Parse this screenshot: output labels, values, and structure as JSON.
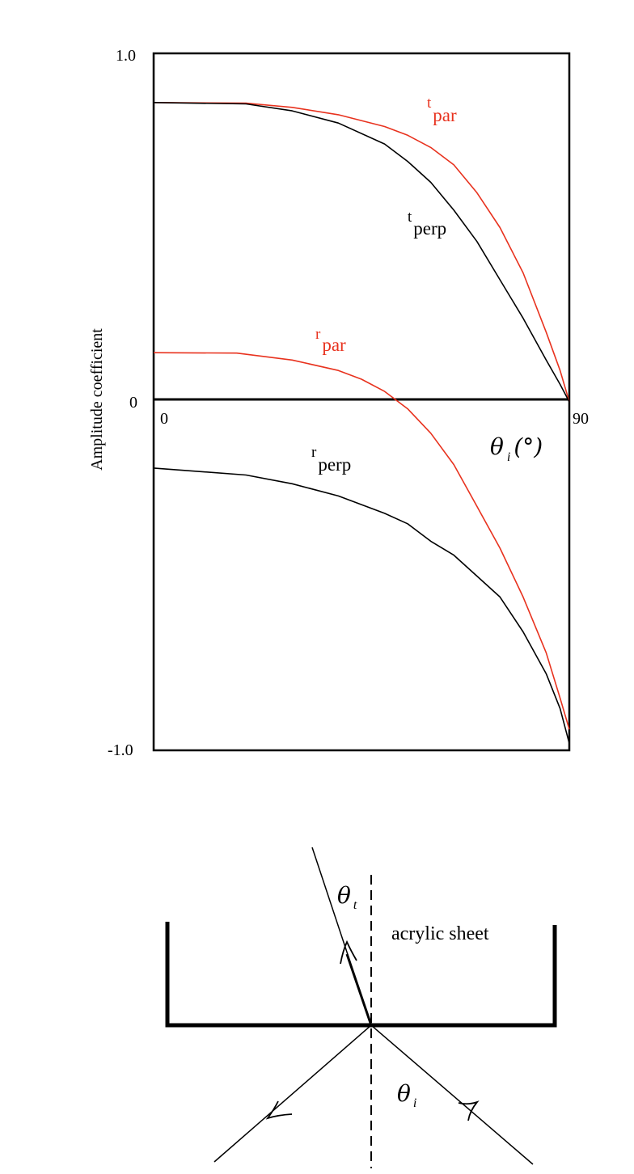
{
  "chart_data": {
    "type": "line",
    "title": "",
    "ylabel": "Amplitude coefficient",
    "xlim": [
      0,
      90
    ],
    "ylim": [
      -1.0,
      1.0
    ],
    "grid": false,
    "y_tick_labels": [
      "1.0",
      "0",
      "-1.0"
    ],
    "x_tick_labels": [
      "0",
      "90"
    ],
    "xlabel_parts": {
      "symbol": "θ",
      "subscript": "i",
      "unit": "(°)"
    },
    "series": [
      {
        "label": {
          "main": "t",
          "sub": "par"
        },
        "color": "#e8321e",
        "x": [
          0,
          20,
          30,
          40,
          50,
          55,
          60,
          65,
          70,
          75,
          80,
          85,
          88,
          90
        ],
        "y": [
          0.859,
          0.857,
          0.845,
          0.824,
          0.79,
          0.765,
          0.73,
          0.68,
          0.6,
          0.5,
          0.37,
          0.2,
          0.09,
          0.0
        ]
      },
      {
        "label": {
          "main": "t",
          "sub": "perp"
        },
        "color": "#000000",
        "x": [
          0,
          20,
          30,
          40,
          50,
          55,
          60,
          65,
          70,
          75,
          80,
          85,
          88,
          90
        ],
        "y": [
          0.859,
          0.855,
          0.835,
          0.8,
          0.74,
          0.69,
          0.63,
          0.55,
          0.46,
          0.35,
          0.24,
          0.12,
          0.05,
          0.0
        ]
      },
      {
        "label": {
          "main": "r",
          "sub": "par"
        },
        "color": "#e8321e",
        "x": [
          0,
          18,
          30,
          40,
          45,
          50,
          55,
          60,
          65,
          70,
          75,
          80,
          85,
          88,
          90
        ],
        "y": [
          0.141,
          0.14,
          0.12,
          0.09,
          0.065,
          0.03,
          -0.02,
          -0.09,
          -0.18,
          -0.3,
          -0.42,
          -0.56,
          -0.72,
          -0.85,
          -0.94
        ]
      },
      {
        "label": {
          "main": "r",
          "sub": "perp"
        },
        "color": "#000000",
        "x": [
          0,
          20,
          30,
          40,
          50,
          55,
          60,
          65,
          70,
          75,
          80,
          85,
          88,
          90
        ],
        "y": [
          -0.19,
          -0.21,
          -0.235,
          -0.27,
          -0.32,
          -0.35,
          -0.4,
          -0.44,
          -0.5,
          -0.56,
          -0.66,
          -0.78,
          -0.88,
          -0.98
        ]
      }
    ]
  },
  "diagram": {
    "sheet_label": "acrylic sheet",
    "theta_t": {
      "symbol": "θ",
      "subscript": "t"
    },
    "theta_i": {
      "symbol": "θ",
      "subscript": "i"
    }
  }
}
